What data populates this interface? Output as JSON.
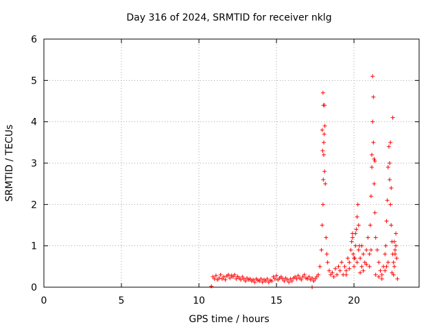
{
  "chart_data": {
    "type": "scatter",
    "title": "Day 316 of 2024, SRMTID for receiver nklg",
    "xlabel": "GPS time / hours",
    "ylabel": "SRMTID / TECUs",
    "xlim": [
      0,
      24.2
    ],
    "ylim": [
      0,
      6
    ],
    "xticks": [
      0,
      5,
      10,
      15,
      20
    ],
    "yticks": [
      0,
      1,
      2,
      3,
      4,
      5,
      6
    ],
    "grid": true,
    "marker": "+",
    "marker_color": "#ff0000",
    "series": [
      {
        "name": "SRMTID",
        "x": [
          10.8,
          10.9,
          11.0,
          11.1,
          11.2,
          11.3,
          11.4,
          11.5,
          11.6,
          11.7,
          11.8,
          11.9,
          12.0,
          12.1,
          12.2,
          12.3,
          12.4,
          12.5,
          12.6,
          12.7,
          12.8,
          12.9,
          13.0,
          13.1,
          13.2,
          13.3,
          13.4,
          13.5,
          13.6,
          13.7,
          13.8,
          13.9,
          14.0,
          14.1,
          14.2,
          14.3,
          14.4,
          14.5,
          14.6,
          14.7,
          14.8,
          14.9,
          15.0,
          15.1,
          15.2,
          15.3,
          15.4,
          15.5,
          15.6,
          15.7,
          15.8,
          15.9,
          16.0,
          16.1,
          16.2,
          16.3,
          16.4,
          16.5,
          16.6,
          16.7,
          16.8,
          16.9,
          17.0,
          17.1,
          17.2,
          17.3,
          17.4,
          17.5,
          17.6,
          17.7,
          17.8,
          17.9,
          17.95,
          18.0,
          18.02,
          18.05,
          18.08,
          18.1,
          18.12,
          18.15,
          18.2,
          18.25,
          18.3,
          18.4,
          18.5,
          18.6,
          18.7,
          18.8,
          18.9,
          19.0,
          19.1,
          19.2,
          19.3,
          19.4,
          19.5,
          19.6,
          19.7,
          19.8,
          19.85,
          19.9,
          19.95,
          20.0,
          20.05,
          20.1,
          20.15,
          20.2,
          20.25,
          20.3,
          20.35,
          20.4,
          20.5,
          20.6,
          20.7,
          20.8,
          20.9,
          21.0,
          21.05,
          21.1,
          21.15,
          21.2,
          21.25,
          21.3,
          21.35,
          21.4,
          21.5,
          21.6,
          21.7,
          21.8,
          21.9,
          22.0,
          22.05,
          22.1,
          22.15,
          22.2,
          22.25,
          22.3,
          22.35,
          22.4,
          22.45,
          22.5,
          22.55,
          22.6,
          22.65,
          22.7,
          22.75,
          22.8,
          17.3,
          17.95,
          18.0,
          18.05,
          18.1,
          17.98,
          18.03,
          21.2,
          21.25,
          21.15,
          22.5,
          22.3,
          22.35,
          22.4,
          21.3,
          21.35,
          20.1,
          20.3,
          19.9,
          20.0,
          20.5,
          20.6,
          21.0,
          21.1,
          22.0,
          22.2,
          22.6,
          22.7,
          19.5,
          19.7,
          20.2,
          20.4,
          20.8,
          21.4,
          21.6,
          21.8,
          22.1,
          22.45,
          22.55,
          22.65
        ],
        "y": [
          0.02,
          0.25,
          0.2,
          0.28,
          0.18,
          0.22,
          0.3,
          0.2,
          0.25,
          0.18,
          0.27,
          0.3,
          0.22,
          0.28,
          0.25,
          0.3,
          0.2,
          0.26,
          0.22,
          0.18,
          0.25,
          0.2,
          0.15,
          0.22,
          0.18,
          0.2,
          0.15,
          0.18,
          0.12,
          0.2,
          0.17,
          0.15,
          0.2,
          0.12,
          0.18,
          0.15,
          0.2,
          0.12,
          0.17,
          0.15,
          0.25,
          0.2,
          0.28,
          0.18,
          0.22,
          0.25,
          0.2,
          0.15,
          0.22,
          0.18,
          0.12,
          0.2,
          0.15,
          0.22,
          0.25,
          0.2,
          0.28,
          0.22,
          0.18,
          0.25,
          0.3,
          0.22,
          0.2,
          0.25,
          0.18,
          0.22,
          0.15,
          0.2,
          0.25,
          0.3,
          0.5,
          0.9,
          1.5,
          2.0,
          2.6,
          3.2,
          3.7,
          4.4,
          3.9,
          2.5,
          1.2,
          0.8,
          0.6,
          0.4,
          0.3,
          0.35,
          0.25,
          0.45,
          0.3,
          0.5,
          0.4,
          0.6,
          0.3,
          0.5,
          0.4,
          0.7,
          0.6,
          0.9,
          1.1,
          1.3,
          0.8,
          0.5,
          0.7,
          1.0,
          1.4,
          1.7,
          2.0,
          1.5,
          1.0,
          0.7,
          0.5,
          0.4,
          0.6,
          0.9,
          1.2,
          0.8,
          1.5,
          2.2,
          2.9,
          4.0,
          3.5,
          2.5,
          1.8,
          1.2,
          0.9,
          0.6,
          0.4,
          0.3,
          0.5,
          0.8,
          1.0,
          1.6,
          2.1,
          2.9,
          3.4,
          2.6,
          2.0,
          1.5,
          1.1,
          0.8,
          0.6,
          0.5,
          0.8,
          1.0,
          0.7,
          0.2,
          0.0,
          3.8,
          4.7,
          3.5,
          2.8,
          3.3,
          4.4,
          5.1,
          4.6,
          3.2,
          4.1,
          3.0,
          3.5,
          2.4,
          3.1,
          3.05,
          1.3,
          0.9,
          1.2,
          0.7,
          1.0,
          0.8,
          0.5,
          0.9,
          0.4,
          0.6,
          1.1,
          1.3,
          0.3,
          0.45,
          0.6,
          0.35,
          0.55,
          0.3,
          0.25,
          0.2,
          0.5,
          0.35,
          0.3,
          0.9
        ]
      }
    ]
  }
}
